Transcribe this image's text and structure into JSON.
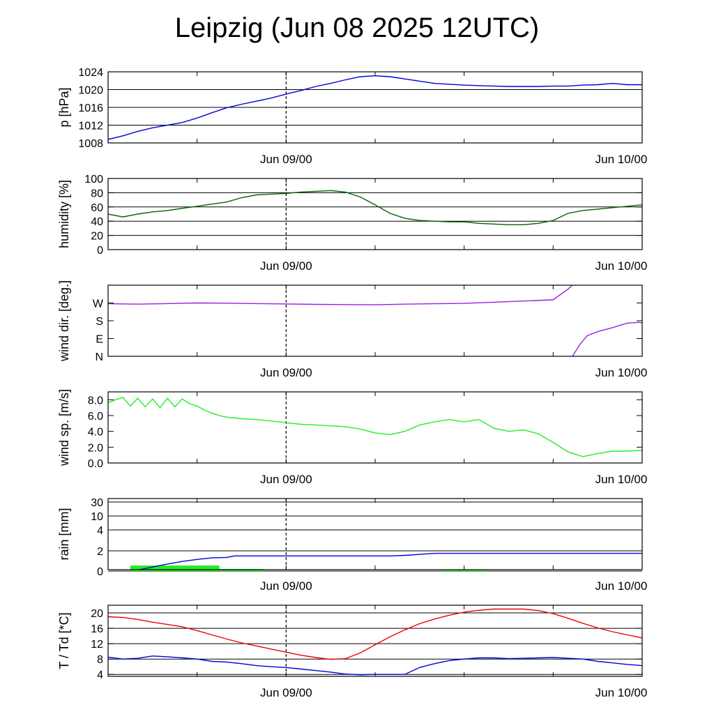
{
  "title": "Leipzig (Jun 08 2025 12UTC)",
  "chart_data": [
    {
      "type": "line",
      "ylabel": "p [hPa]",
      "ylim": [
        1008,
        1024
      ],
      "yticks": [
        1008,
        1012,
        1016,
        1020,
        1024
      ],
      "ytick_labels": [
        "1008",
        "1012",
        "1016",
        "1020",
        "1024"
      ],
      "grid": "horizontal",
      "x_tick_labels": [
        "Jun 09/00",
        "Jun 10/00"
      ],
      "series": [
        {
          "color": "#0000dd",
          "x": [
            0,
            1,
            2,
            3,
            4,
            5,
            6,
            7,
            8,
            9,
            10,
            11,
            12,
            13,
            14,
            15,
            16,
            17,
            18,
            19,
            20,
            21,
            22,
            23,
            24,
            25,
            26,
            27,
            28,
            29,
            30,
            31,
            32,
            33,
            34,
            35,
            36
          ],
          "values": [
            1008.8,
            1009.6,
            1010.6,
            1011.4,
            1012.0,
            1012.6,
            1013.6,
            1014.8,
            1015.9,
            1016.7,
            1017.4,
            1018.1,
            1019.0,
            1019.8,
            1020.7,
            1021.4,
            1022.2,
            1022.9,
            1023.1,
            1022.9,
            1022.4,
            1021.9,
            1021.4,
            1021.2,
            1021.0,
            1020.9,
            1020.8,
            1020.7,
            1020.7,
            1020.7,
            1020.8,
            1020.8,
            1021.0,
            1021.1,
            1021.4,
            1021.1,
            1021.1
          ]
        }
      ]
    },
    {
      "type": "line",
      "ylabel": "humidity [%]",
      "ylim": [
        0,
        100
      ],
      "yticks": [
        0,
        20,
        40,
        60,
        80,
        100
      ],
      "ytick_labels": [
        "0",
        "20",
        "40",
        "60",
        "80",
        "100"
      ],
      "grid": "horizontal",
      "x_tick_labels": [
        "Jun 09/00",
        "Jun 10/00"
      ],
      "series": [
        {
          "color": "#006400",
          "x": [
            0,
            1,
            2,
            3,
            4,
            5,
            6,
            7,
            8,
            9,
            10,
            11,
            12,
            13,
            14,
            15,
            16,
            17,
            18,
            19,
            20,
            21,
            22,
            23,
            24,
            25,
            26,
            27,
            28,
            29,
            30,
            31,
            32,
            33,
            34,
            35,
            36
          ],
          "values": [
            50,
            46,
            50,
            53,
            55,
            58,
            61,
            64,
            67,
            73,
            77,
            78,
            79,
            81,
            82,
            83,
            81,
            74,
            63,
            51,
            44,
            41,
            40,
            39,
            39,
            37,
            36,
            35,
            35,
            37,
            41,
            51,
            55,
            57,
            59,
            61,
            63
          ]
        }
      ]
    },
    {
      "type": "line",
      "ylabel": "wind dir. [deg.]",
      "ylim": [
        0,
        360
      ],
      "yticks": [
        0,
        90,
        180,
        270
      ],
      "ytick_labels": [
        "N",
        "E",
        "S",
        "W"
      ],
      "grid": "none",
      "x_tick_labels": [
        "Jun 09/00",
        "Jun 10/00"
      ],
      "series": [
        {
          "color": "#9b1fe0",
          "x": [
            0,
            2,
            4,
            6,
            8,
            10,
            12,
            14,
            16,
            18,
            20,
            22,
            24,
            26,
            28,
            30,
            31,
            31.3
          ],
          "values": [
            266,
            264,
            267,
            270,
            269,
            267,
            265,
            263,
            262,
            261,
            264,
            266,
            268,
            274,
            280,
            286,
            340,
            360
          ]
        },
        {
          "color": "#9b1fe0",
          "x": [
            31.3,
            31.8,
            32.3,
            33,
            34,
            35,
            35.7,
            36
          ],
          "values": [
            0,
            60,
            105,
            125,
            145,
            168,
            172,
            170
          ]
        }
      ]
    },
    {
      "type": "line",
      "ylabel": "wind sp. [m/s]",
      "ylim": [
        0,
        9
      ],
      "yticks": [
        0,
        2,
        4,
        6,
        8
      ],
      "ytick_labels": [
        "0.0",
        "2.0",
        "4.0",
        "6.0",
        "8.0"
      ],
      "grid": "none",
      "x_tick_labels": [
        "Jun 09/00",
        "Jun 10/00"
      ],
      "series": [
        {
          "color": "#22ee22",
          "x": [
            0,
            0.5,
            1,
            1.5,
            2,
            2.5,
            3,
            3.5,
            4,
            4.5,
            5,
            5.5,
            6,
            6.5,
            7,
            7.5,
            8,
            9,
            10,
            11,
            12,
            13,
            14,
            15,
            16,
            17,
            18,
            19,
            20,
            21,
            22,
            23,
            24,
            25,
            26,
            27,
            28,
            29,
            30,
            31,
            32,
            33,
            34,
            35,
            36
          ],
          "values": [
            7.6,
            8.0,
            8.3,
            7.2,
            8.2,
            7.1,
            8.1,
            7.0,
            8.2,
            7.1,
            8.1,
            7.5,
            7.2,
            6.7,
            6.3,
            6.0,
            5.8,
            5.6,
            5.5,
            5.3,
            5.1,
            4.9,
            4.8,
            4.7,
            4.6,
            4.3,
            3.8,
            3.6,
            4.0,
            4.8,
            5.2,
            5.5,
            5.2,
            5.5,
            4.4,
            4.0,
            4.2,
            3.7,
            2.6,
            1.4,
            0.8,
            1.2,
            1.5,
            1.5,
            1.6
          ]
        }
      ]
    },
    {
      "type": "bar",
      "ylabel": "rain [mm]",
      "yticks": [
        0,
        2,
        4,
        10,
        30
      ],
      "ytick_labels": [
        "0",
        "2",
        "4",
        "10",
        "30"
      ],
      "grid": "horizontal",
      "x_tick_labels": [
        "Jun 09/00",
        "Jun 10/00"
      ],
      "bars": [
        {
          "color": "#22ee22",
          "x_start": 1.5,
          "x_end": 7.5,
          "value": 0.55
        },
        {
          "color": "#22ee22",
          "x_start": 7.5,
          "x_end": 10.5,
          "value": 0.2
        },
        {
          "color": "#22ee22",
          "x_start": 22.5,
          "x_end": 25.5,
          "value": 0.15
        }
      ],
      "series": [
        {
          "color": "#0000dd",
          "x": [
            0,
            1,
            2,
            3,
            4,
            5,
            6,
            7,
            8,
            8.5,
            9,
            10,
            11,
            12,
            13,
            14,
            15,
            16,
            17,
            18,
            19,
            20,
            21,
            22,
            23,
            24,
            25,
            26,
            27,
            28,
            29,
            30,
            31,
            32,
            33,
            34,
            35,
            36
          ],
          "values": [
            0,
            0,
            0.1,
            0.4,
            0.7,
            0.95,
            1.15,
            1.3,
            1.35,
            1.5,
            1.5,
            1.5,
            1.5,
            1.5,
            1.5,
            1.5,
            1.5,
            1.5,
            1.5,
            1.5,
            1.5,
            1.55,
            1.65,
            1.75,
            1.75,
            1.75,
            1.75,
            1.75,
            1.75,
            1.75,
            1.75,
            1.75,
            1.75,
            1.75,
            1.75,
            1.75,
            1.75,
            1.75
          ]
        }
      ]
    },
    {
      "type": "line",
      "ylabel": "T / Td [*C]",
      "ylim": [
        3.5,
        22
      ],
      "yticks": [
        4,
        8,
        12,
        16,
        20
      ],
      "ytick_labels": [
        "4",
        "8",
        "12",
        "16",
        "20"
      ],
      "grid": "horizontal",
      "x_tick_labels": [
        "Jun 09/00",
        "Jun 10/00"
      ],
      "series": [
        {
          "color": "#ee0000",
          "x": [
            0,
            1,
            2,
            3,
            4,
            5,
            6,
            7,
            8,
            9,
            10,
            11,
            12,
            13,
            14,
            15,
            16,
            17,
            18,
            19,
            20,
            21,
            22,
            23,
            24,
            25,
            26,
            27,
            28,
            29,
            30,
            31,
            32,
            33,
            34,
            35,
            36
          ],
          "values": [
            19.0,
            18.8,
            18.3,
            17.6,
            17.0,
            16.4,
            15.4,
            14.3,
            13.2,
            12.2,
            11.4,
            10.6,
            9.8,
            9.0,
            8.4,
            7.9,
            8.1,
            9.6,
            11.7,
            13.8,
            15.6,
            17.2,
            18.4,
            19.4,
            20.2,
            20.7,
            21.0,
            21.0,
            21.0,
            20.6,
            19.8,
            18.6,
            17.3,
            16.1,
            15.1,
            14.3,
            13.5
          ]
        },
        {
          "color": "#0000dd",
          "x": [
            0,
            1,
            2,
            3,
            4,
            5,
            6,
            7,
            8,
            9,
            10,
            11,
            12,
            13,
            14,
            15,
            16,
            17,
            18,
            19,
            20,
            21,
            22,
            23,
            24,
            25,
            26,
            27,
            28,
            29,
            30,
            31,
            32,
            33,
            34,
            35,
            36
          ],
          "values": [
            8.5,
            8.0,
            8.2,
            8.8,
            8.6,
            8.3,
            8.0,
            7.4,
            7.2,
            6.8,
            6.3,
            6.0,
            5.8,
            5.4,
            5.0,
            4.6,
            4.1,
            3.9,
            4.0,
            4.0,
            4.0,
            5.8,
            6.8,
            7.6,
            8.0,
            8.3,
            8.3,
            8.1,
            8.2,
            8.3,
            8.4,
            8.2,
            8.0,
            7.4,
            7.0,
            6.6,
            6.3
          ]
        }
      ]
    }
  ]
}
